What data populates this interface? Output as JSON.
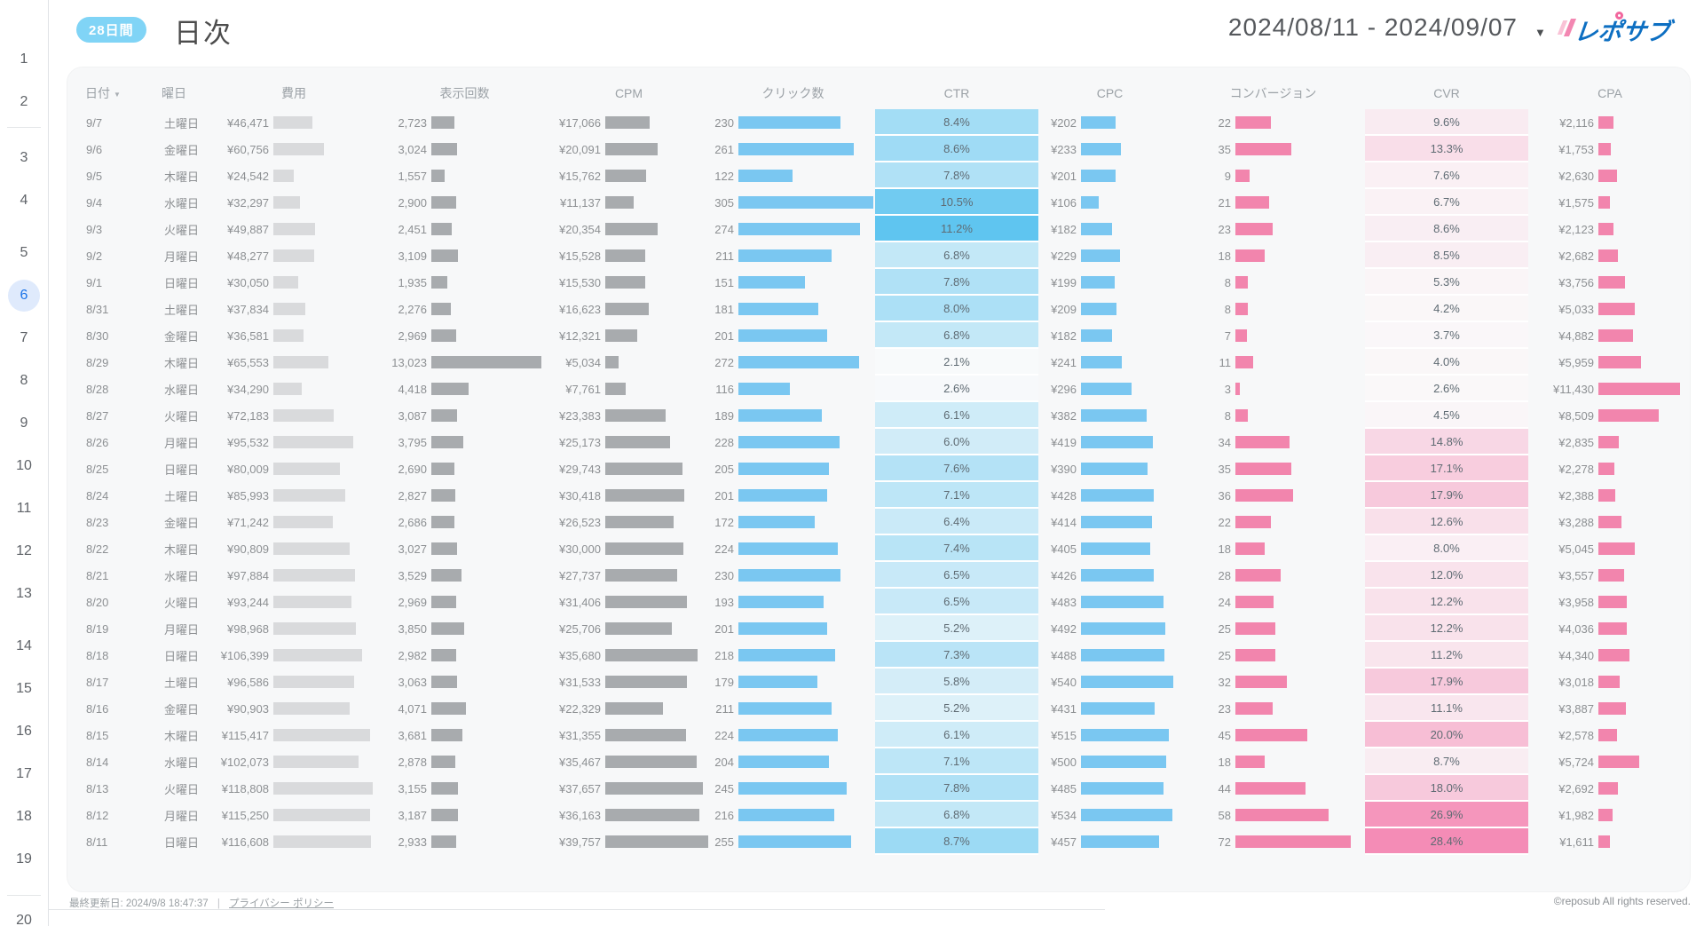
{
  "header": {
    "badge": "28日間",
    "title": "日次",
    "date_range": "2024/08/11 - 2024/09/07",
    "date_caret": "▼",
    "logo_text": "レポサブ"
  },
  "sidebar": {
    "pages": [
      {
        "label": "1"
      },
      {
        "label": "2"
      },
      {
        "label": "3",
        "divider_before": true,
        "gap_before": true
      },
      {
        "label": "4"
      },
      {
        "label": "5",
        "gap_before": true
      },
      {
        "label": "6",
        "active": true
      },
      {
        "label": "7"
      },
      {
        "label": "8"
      },
      {
        "label": "9"
      },
      {
        "label": "10"
      },
      {
        "label": "11"
      },
      {
        "label": "12"
      },
      {
        "label": "13"
      },
      {
        "label": "14",
        "gap_before": true
      },
      {
        "label": "15"
      },
      {
        "label": "16"
      },
      {
        "label": "17"
      },
      {
        "label": "18"
      },
      {
        "label": "19"
      },
      {
        "label": "20",
        "divider_before": true,
        "divider_bottom": true
      }
    ]
  },
  "table": {
    "sort_caret": "▼",
    "columns": [
      {
        "key": "date",
        "label": "日付",
        "type": "text",
        "cls": "c-date",
        "sortable": true
      },
      {
        "key": "dow",
        "label": "曜日",
        "type": "text",
        "cls": "c-dow"
      },
      {
        "key": "cost",
        "label": "費用",
        "type": "bar",
        "fmt": "yen",
        "value_w": 72,
        "bar_color": "#d9dadc",
        "max": 118808,
        "bar_max": 112
      },
      {
        "key": "imp",
        "label": "表示回数",
        "type": "bar",
        "fmt": "num",
        "value_w": 50,
        "bar_color": "#a8abae",
        "max": 13023,
        "bar_max": 124
      },
      {
        "key": "cpm",
        "label": "CPM",
        "type": "bar",
        "fmt": "yen",
        "value_w": 61,
        "bar_color": "#a8abae",
        "max": 39757,
        "bar_max": 116
      },
      {
        "key": "clicks",
        "label": "クリック数",
        "type": "bar",
        "fmt": "num",
        "value_w": 26,
        "bar_color": "#7ac7f1",
        "max": 305,
        "bar_max": 152
      },
      {
        "key": "ctr",
        "label": "CTR",
        "type": "heat",
        "fmt": "pct",
        "scale": {
          "min": 2.1,
          "max": 11.2,
          "from": "#f8fafb",
          "to": "#5fc5f0"
        }
      },
      {
        "key": "cpc",
        "label": "CPC",
        "type": "bar",
        "fmt": "yen",
        "value_w": 43,
        "bar_color": "#7ac7f1",
        "max": 540,
        "bar_max": 104
      },
      {
        "key": "cv",
        "label": "コンバージョン",
        "type": "bar",
        "fmt": "num",
        "value_w": 56,
        "bar_color": "#f285ad",
        "max": 72,
        "bar_max": 130
      },
      {
        "key": "cvr",
        "label": "CVR",
        "type": "heat",
        "fmt": "pct",
        "scale": {
          "min": 2.6,
          "max": 28.4,
          "from": "#faf8f9",
          "to": "#f48cb6"
        }
      },
      {
        "key": "cpa",
        "label": "CPA",
        "type": "bar",
        "fmt": "yen",
        "value_w": 74,
        "bar_color": "#f285ad",
        "max": 11430,
        "bar_max": 92
      }
    ],
    "rows": [
      [
        "9/7",
        "土曜日",
        46471,
        2723,
        17066,
        230,
        8.4,
        202,
        22,
        9.6,
        2116
      ],
      [
        "9/6",
        "金曜日",
        60756,
        3024,
        20091,
        261,
        8.6,
        233,
        35,
        13.3,
        1753
      ],
      [
        "9/5",
        "木曜日",
        24542,
        1557,
        15762,
        122,
        7.8,
        201,
        9,
        7.6,
        2630
      ],
      [
        "9/4",
        "水曜日",
        32297,
        2900,
        11137,
        305,
        10.5,
        106,
        21,
        6.7,
        1575
      ],
      [
        "9/3",
        "火曜日",
        49887,
        2451,
        20354,
        274,
        11.2,
        182,
        23,
        8.6,
        2123
      ],
      [
        "9/2",
        "月曜日",
        48277,
        3109,
        15528,
        211,
        6.8,
        229,
        18,
        8.5,
        2682
      ],
      [
        "9/1",
        "日曜日",
        30050,
        1935,
        15530,
        151,
        7.8,
        199,
        8,
        5.3,
        3756
      ],
      [
        "8/31",
        "土曜日",
        37834,
        2276,
        16623,
        181,
        8.0,
        209,
        8,
        4.2,
        5033
      ],
      [
        "8/30",
        "金曜日",
        36581,
        2969,
        12321,
        201,
        6.8,
        182,
        7,
        3.7,
        4882
      ],
      [
        "8/29",
        "木曜日",
        65553,
        13023,
        5034,
        272,
        2.1,
        241,
        11,
        4.0,
        5959
      ],
      [
        "8/28",
        "水曜日",
        34290,
        4418,
        7761,
        116,
        2.6,
        296,
        3,
        2.6,
        11430
      ],
      [
        "8/27",
        "火曜日",
        72183,
        3087,
        23383,
        189,
        6.1,
        382,
        8,
        4.5,
        8509
      ],
      [
        "8/26",
        "月曜日",
        95532,
        3795,
        25173,
        228,
        6.0,
        419,
        34,
        14.8,
        2835
      ],
      [
        "8/25",
        "日曜日",
        80009,
        2690,
        29743,
        205,
        7.6,
        390,
        35,
        17.1,
        2278
      ],
      [
        "8/24",
        "土曜日",
        85993,
        2827,
        30418,
        201,
        7.1,
        428,
        36,
        17.9,
        2388
      ],
      [
        "8/23",
        "金曜日",
        71242,
        2686,
        26523,
        172,
        6.4,
        414,
        22,
        12.6,
        3288
      ],
      [
        "8/22",
        "木曜日",
        90809,
        3027,
        30000,
        224,
        7.4,
        405,
        18,
        8.0,
        5045
      ],
      [
        "8/21",
        "水曜日",
        97884,
        3529,
        27737,
        230,
        6.5,
        426,
        28,
        12.0,
        3557
      ],
      [
        "8/20",
        "火曜日",
        93244,
        2969,
        31406,
        193,
        6.5,
        483,
        24,
        12.2,
        3958
      ],
      [
        "8/19",
        "月曜日",
        98968,
        3850,
        25706,
        201,
        5.2,
        492,
        25,
        12.2,
        4036
      ],
      [
        "8/18",
        "日曜日",
        106399,
        2982,
        35680,
        218,
        7.3,
        488,
        25,
        11.2,
        4340
      ],
      [
        "8/17",
        "土曜日",
        96586,
        3063,
        31533,
        179,
        5.8,
        540,
        32,
        17.9,
        3018
      ],
      [
        "8/16",
        "金曜日",
        90903,
        4071,
        22329,
        211,
        5.2,
        431,
        23,
        11.1,
        3887
      ],
      [
        "8/15",
        "木曜日",
        115417,
        3681,
        31355,
        224,
        6.1,
        515,
        45,
        20.0,
        2578
      ],
      [
        "8/14",
        "水曜日",
        102073,
        2878,
        35467,
        204,
        7.1,
        500,
        18,
        8.7,
        5724
      ],
      [
        "8/13",
        "火曜日",
        118808,
        3155,
        37657,
        245,
        7.8,
        485,
        44,
        18.0,
        2692
      ],
      [
        "8/12",
        "月曜日",
        115250,
        3187,
        36163,
        216,
        6.8,
        534,
        58,
        26.9,
        1982
      ],
      [
        "8/11",
        "日曜日",
        116608,
        2933,
        39757,
        255,
        8.7,
        457,
        72,
        28.4,
        1611
      ]
    ]
  },
  "footer": {
    "last_updated": "最終更新日: 2024/9/8 18:47:37",
    "separator": "|",
    "privacy_link": "プライバシー ポリシー",
    "copyright": "©reposub All rights reserved."
  },
  "colors": {
    "badge_bg": "#80d4f6",
    "blue_bar": "#7ac7f1",
    "pink_bar": "#f285ad",
    "gray_bar_light": "#d9dadc",
    "gray_bar_dark": "#a8abae",
    "ctr_heat_max": "#5fc5f0",
    "cvr_heat_max": "#f48cb6",
    "active_page": "#1a73e8"
  }
}
